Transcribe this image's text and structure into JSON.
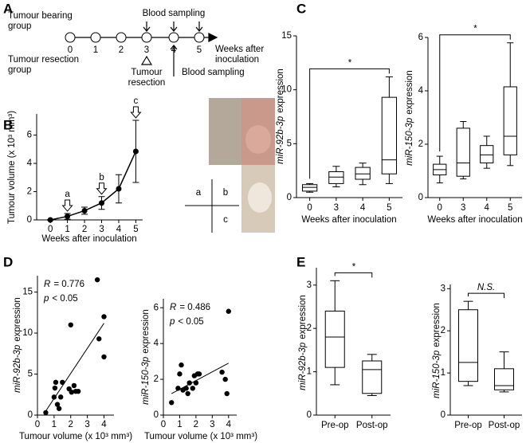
{
  "panel_labels": [
    "A",
    "B",
    "C",
    "D",
    "E"
  ],
  "timeline": {
    "groups": [
      [
        "Tumour bearing",
        "group"
      ],
      [
        "Tumour resection",
        "group"
      ]
    ],
    "weeks": [
      "0",
      "1",
      "2",
      "3",
      "4",
      "5"
    ],
    "axis_label": [
      "Weeks after",
      "inoculation"
    ],
    "sampling_top": "Blood sampling",
    "resection": [
      "Tumour",
      "resection"
    ],
    "sampling_bottom": "Blood sampling"
  },
  "photo_key": [
    "a",
    "b",
    "c"
  ],
  "chart_data": [
    {
      "type": "line",
      "x": [
        0,
        1,
        2,
        3,
        4,
        5
      ],
      "values": [
        0,
        0.25,
        0.65,
        1.2,
        2.2,
        4.85
      ],
      "errors": [
        0.02,
        0.2,
        0.25,
        0.45,
        1.0,
        2.2
      ],
      "point_labels": [
        null,
        "a",
        null,
        "b",
        null,
        "c"
      ],
      "xlabel": "Weeks after inoculation",
      "ylabel": "Tumour volume (x 10³ mm³)",
      "xlim": [
        -0.8,
        5.4
      ],
      "ylim": [
        0,
        7.5
      ],
      "xticks": [
        0,
        1,
        2,
        3,
        4,
        5
      ],
      "yticks": [
        0,
        2,
        4,
        6
      ],
      "color": "#000000"
    },
    {
      "type": "box",
      "categories": [
        "0",
        "3",
        "4",
        "5"
      ],
      "boxes": [
        {
          "whislo": 0.5,
          "q1": 0.6,
          "med": 0.95,
          "q3": 1.2,
          "whishi": 1.3
        },
        {
          "whislo": 1.0,
          "q1": 1.3,
          "med": 1.9,
          "q3": 2.4,
          "whishi": 2.9
        },
        {
          "whislo": 1.2,
          "q1": 1.7,
          "med": 2.2,
          "q3": 2.8,
          "whishi": 3.2
        },
        {
          "whislo": 1.3,
          "q1": 2.2,
          "med": 3.5,
          "q3": 9.3,
          "whishi": 11.2
        }
      ],
      "ylabel": {
        "gene": "miR-92b-3p",
        "text": "expression"
      },
      "xlabel": "Weeks after inoculation",
      "ylim": [
        0,
        15
      ],
      "yticks": [
        0,
        5,
        10,
        15
      ],
      "significance": "*"
    },
    {
      "type": "box",
      "categories": [
        "0",
        "3",
        "4",
        "5"
      ],
      "boxes": [
        {
          "whislo": 0.55,
          "q1": 0.85,
          "med": 1.05,
          "q3": 1.25,
          "whishi": 1.55
        },
        {
          "whislo": 0.7,
          "q1": 0.8,
          "med": 1.3,
          "q3": 2.6,
          "whishi": 2.85
        },
        {
          "whislo": 1.1,
          "q1": 1.3,
          "med": 1.6,
          "q3": 1.95,
          "whishi": 2.3
        },
        {
          "whislo": 1.2,
          "q1": 1.6,
          "med": 2.3,
          "q3": 4.15,
          "whishi": 5.8
        }
      ],
      "ylabel": {
        "gene": "miR-150-3p",
        "text": "expression"
      },
      "xlabel": "Weeks after inoculation",
      "ylim": [
        0,
        6
      ],
      "yticks": [
        0,
        2,
        4,
        6
      ],
      "significance": "*"
    },
    {
      "type": "scatter",
      "x": [
        0.5,
        1.0,
        1.05,
        1.1,
        1.2,
        1.3,
        1.4,
        1.5,
        1.9,
        2.0,
        2.05,
        2.2,
        2.3,
        2.45,
        3.6,
        3.7,
        4.0,
        4.0
      ],
      "y": [
        0.3,
        2.2,
        3.3,
        4.0,
        1.3,
        0.8,
        2.2,
        4.0,
        3.2,
        11.0,
        2.8,
        3.6,
        2.9,
        2.9,
        16.5,
        9.3,
        12.0,
        7.1
      ],
      "fit": {
        "x": [
          0.5,
          4.0
        ],
        "y": [
          0.5,
          11.2
        ]
      },
      "stats": [
        {
          "symbol": "R",
          "text": "= 0.776"
        },
        {
          "symbol": "p",
          "text": "< 0.05"
        }
      ],
      "xlabel": "Tumour volume (x 10³ mm³)",
      "ylabel": {
        "gene": "miR-92b-3p",
        "text": "expression"
      },
      "xlim": [
        0,
        4.6
      ],
      "ylim": [
        0,
        17
      ],
      "xticks": [
        0,
        1,
        2,
        3,
        4
      ],
      "yticks": [
        0,
        5,
        10,
        15
      ]
    },
    {
      "type": "scatter",
      "x": [
        0.5,
        0.9,
        1.0,
        1.1,
        1.2,
        1.4,
        1.5,
        1.6,
        1.8,
        1.9,
        2.0,
        2.1,
        2.2,
        3.6,
        3.8,
        3.9,
        4.0
      ],
      "y": [
        0.7,
        1.5,
        2.3,
        2.8,
        1.4,
        1.5,
        1.2,
        1.8,
        1.5,
        2.2,
        1.8,
        2.3,
        2.3,
        2.4,
        2.0,
        1.2,
        5.8
      ],
      "fit": {
        "x": [
          0.5,
          4.0
        ],
        "y": [
          1.2,
          2.9
        ]
      },
      "stats": [
        {
          "symbol": "R",
          "text": "= 0.486"
        },
        {
          "symbol": "p",
          "text": "< 0.05"
        }
      ],
      "xlabel": "Tumour volume (x 10³ mm³)",
      "ylabel": {
        "gene": "miR-150-3p",
        "text": "expression"
      },
      "xlim": [
        0,
        4.5
      ],
      "ylim": [
        0,
        6.5
      ],
      "xticks": [
        0,
        1,
        2,
        3,
        4
      ],
      "yticks": [
        0,
        2,
        4,
        6
      ]
    },
    {
      "type": "box",
      "categories": [
        "Pre-op",
        "Post-op"
      ],
      "boxes": [
        {
          "whislo": 0.7,
          "q1": 1.1,
          "med": 1.8,
          "q3": 2.4,
          "whishi": 3.1
        },
        {
          "whislo": 0.45,
          "q1": 0.5,
          "med": 1.05,
          "q3": 1.25,
          "whishi": 1.4
        }
      ],
      "ylabel": {
        "gene": "miR-92b-3p",
        "text": "expression"
      },
      "ylim": [
        0,
        3.4
      ],
      "yticks": [
        0,
        1,
        2,
        3
      ],
      "significance": "*"
    },
    {
      "type": "box",
      "categories": [
        "Pre-op",
        "Post-op"
      ],
      "boxes": [
        {
          "whislo": 0.7,
          "q1": 0.8,
          "med": 1.25,
          "q3": 2.5,
          "whishi": 2.7
        },
        {
          "whislo": 0.55,
          "q1": 0.6,
          "med": 0.7,
          "q3": 1.1,
          "whishi": 1.5
        }
      ],
      "ylabel": {
        "gene": "miR-150-3p",
        "text": "expression"
      },
      "ylim": [
        0,
        3.1
      ],
      "yticks": [
        0,
        1,
        2,
        3
      ],
      "significance": "N.S."
    }
  ]
}
